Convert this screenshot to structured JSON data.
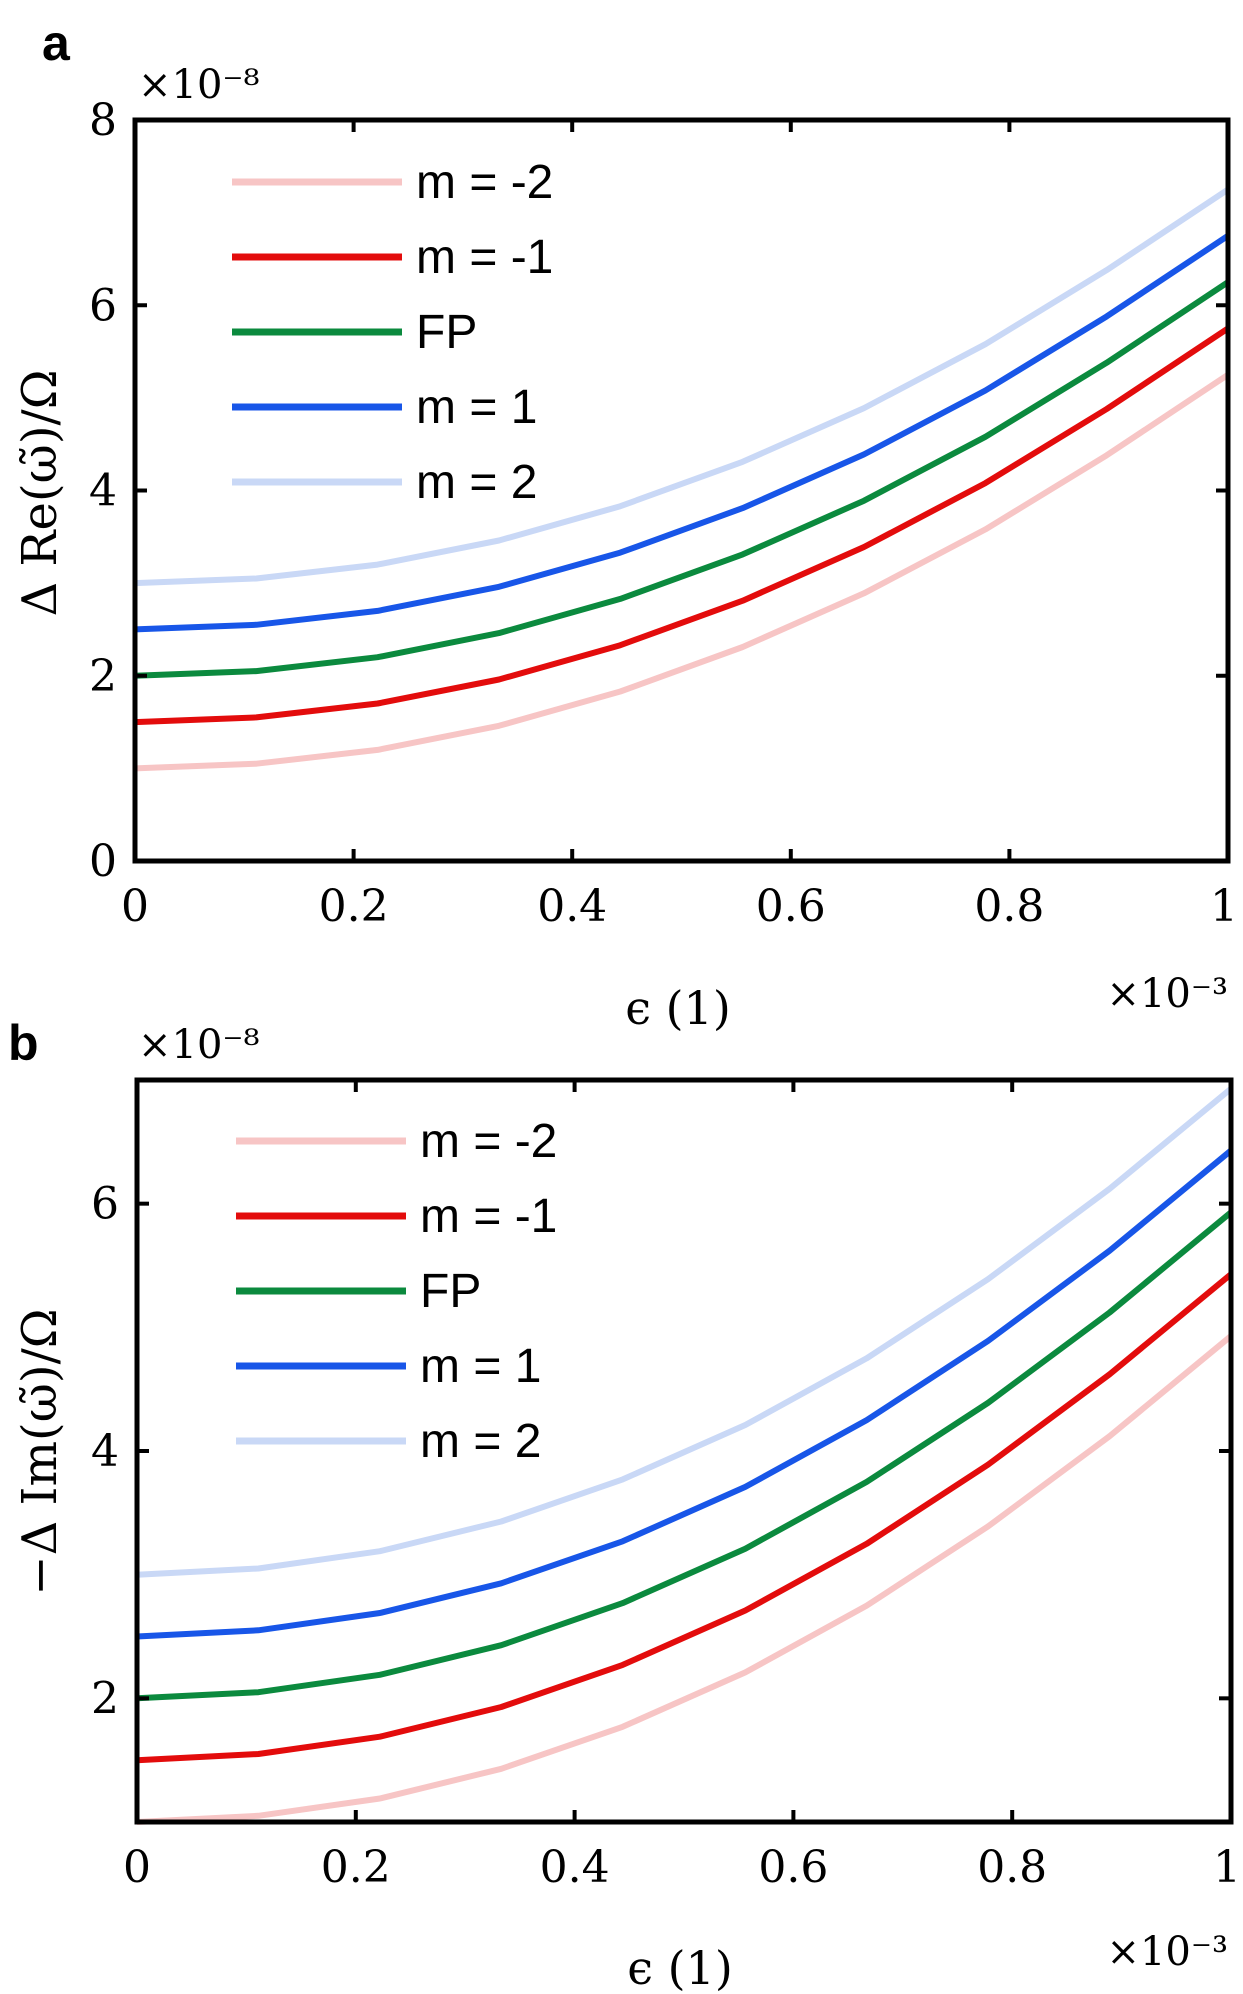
{
  "chart_data": [
    {
      "type": "line",
      "panel_label": "a",
      "exponent_y": "×10⁻⁸",
      "exponent_x": "×10⁻³",
      "xlabel": "ϵ (1)",
      "ylabel": "Δ Re(ω̃)/Ω",
      "xlim": [
        0,
        1
      ],
      "ylim": [
        0,
        8
      ],
      "xticks": [
        0,
        0.2,
        0.4,
        0.6,
        0.8,
        1
      ],
      "xtick_labels": [
        "0",
        "0.2",
        "0.4",
        "0.6",
        "0.8",
        "1"
      ],
      "yticks": [
        0,
        2,
        4,
        6,
        8
      ],
      "ytick_labels": [
        "0",
        "2",
        "4",
        "6",
        "8"
      ],
      "legend_position": "top-left",
      "x": [
        0,
        0.111,
        0.222,
        0.333,
        0.444,
        0.556,
        0.667,
        0.778,
        0.889,
        1.0
      ],
      "series": [
        {
          "name": "m = -2",
          "color": "#f7c5c5",
          "values": [
            1.0,
            1.05,
            1.2,
            1.46,
            1.83,
            2.31,
            2.89,
            3.58,
            4.38,
            5.25
          ]
        },
        {
          "name": "m = -1",
          "color": "#e30c0c",
          "values": [
            1.5,
            1.55,
            1.7,
            1.96,
            2.33,
            2.81,
            3.39,
            4.08,
            4.88,
            5.75
          ]
        },
        {
          "name": "FP",
          "color": "#0b8a3e",
          "values": [
            2.0,
            2.05,
            2.2,
            2.46,
            2.83,
            3.31,
            3.89,
            4.58,
            5.38,
            6.25
          ]
        },
        {
          "name": "m = 1",
          "color": "#1856e8",
          "values": [
            2.5,
            2.55,
            2.7,
            2.96,
            3.33,
            3.81,
            4.39,
            5.08,
            5.88,
            6.75
          ]
        },
        {
          "name": "m = 2",
          "color": "#c9d8f6",
          "values": [
            3.0,
            3.05,
            3.2,
            3.46,
            3.83,
            4.31,
            4.89,
            5.58,
            6.38,
            7.25
          ]
        }
      ]
    },
    {
      "type": "line",
      "panel_label": "b",
      "exponent_y": "×10⁻⁸",
      "exponent_x": "×10⁻³",
      "xlabel": "ϵ (1)",
      "ylabel": "−Δ Im(ω̃)/Ω",
      "xlim": [
        0,
        1
      ],
      "ylim": [
        1,
        7
      ],
      "xticks": [
        0,
        0.2,
        0.4,
        0.6,
        0.8,
        1
      ],
      "xtick_labels": [
        "0",
        "0.2",
        "0.4",
        "0.6",
        "0.8",
        "1"
      ],
      "yticks": [
        2,
        4,
        6
      ],
      "ytick_labels": [
        "2",
        "4",
        "6"
      ],
      "legend_position": "top-left",
      "x": [
        0,
        0.111,
        0.222,
        0.333,
        0.444,
        0.556,
        0.667,
        0.778,
        0.889,
        1.0
      ],
      "series": [
        {
          "name": "m = -2",
          "color": "#f7c5c5",
          "values": [
            1.0,
            1.05,
            1.19,
            1.43,
            1.77,
            2.21,
            2.75,
            3.39,
            4.12,
            4.93
          ]
        },
        {
          "name": "m = -1",
          "color": "#e30c0c",
          "values": [
            1.5,
            1.55,
            1.69,
            1.93,
            2.27,
            2.71,
            3.25,
            3.89,
            4.62,
            5.43
          ]
        },
        {
          "name": "FP",
          "color": "#0b8a3e",
          "values": [
            2.0,
            2.05,
            2.19,
            2.43,
            2.77,
            3.21,
            3.75,
            4.39,
            5.12,
            5.93
          ]
        },
        {
          "name": "m = 1",
          "color": "#1856e8",
          "values": [
            2.5,
            2.55,
            2.69,
            2.93,
            3.27,
            3.71,
            4.25,
            4.89,
            5.62,
            6.43
          ]
        },
        {
          "name": "m = 2",
          "color": "#c9d8f6",
          "values": [
            3.0,
            3.05,
            3.19,
            3.43,
            3.77,
            4.21,
            4.75,
            5.39,
            6.12,
            6.93
          ]
        }
      ]
    }
  ]
}
